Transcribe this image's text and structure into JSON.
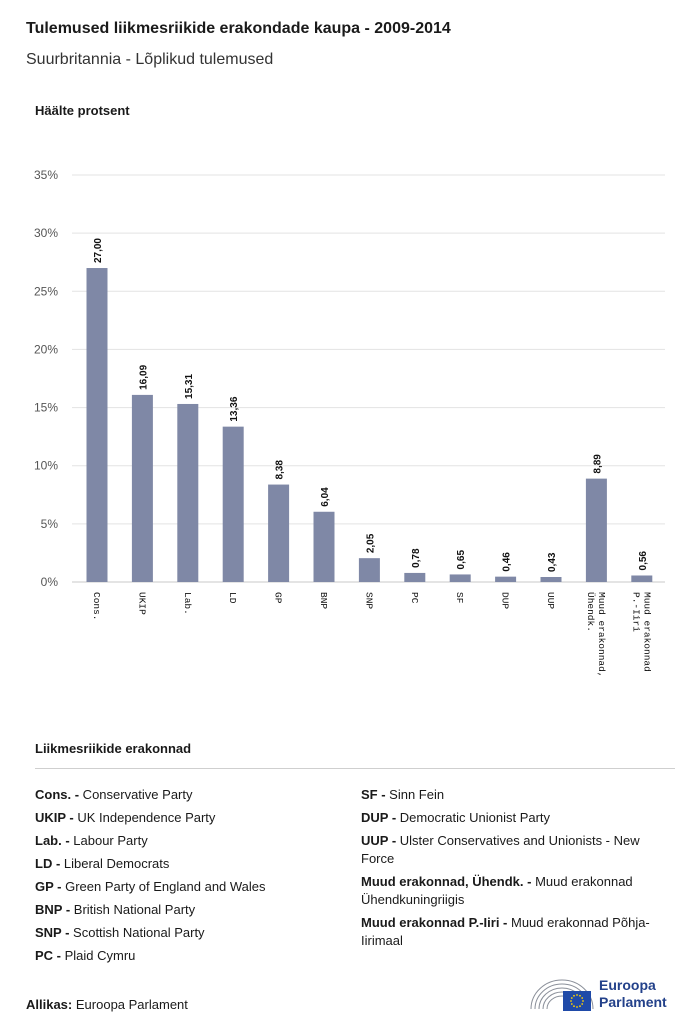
{
  "header": {
    "title": "Tulemused liikmesriikide erakondade kaupa - 2009-2014",
    "subtitle": "Suurbritannia - Lõplikud tulemused"
  },
  "chart_data": {
    "type": "bar",
    "title": "Tulemused liikmesriikide erakondade kaupa - 2009-2014",
    "subtitle": "Suurbritannia - Lõplikud tulemused",
    "ylabel": "Häälte protsent",
    "xlabel": "",
    "ylim": [
      0,
      35
    ],
    "yticks": [
      0,
      5,
      10,
      15,
      20,
      25,
      30,
      35
    ],
    "ytick_labels": [
      "0%",
      "5%",
      "10%",
      "15%",
      "20%",
      "25%",
      "30%",
      "35%"
    ],
    "categories": [
      "Cons.",
      "UKIP",
      "Lab.",
      "LD",
      "GP",
      "BNP",
      "SNP",
      "PC",
      "SF",
      "DUP",
      "UUP",
      "Muud erakonnad, Ühendk.",
      "Muud erakonnad P.-Iiri"
    ],
    "values": [
      27.0,
      16.09,
      15.31,
      13.36,
      8.38,
      6.04,
      2.05,
      0.78,
      0.65,
      0.46,
      0.43,
      8.89,
      0.56
    ],
    "value_labels": [
      "27,00",
      "16,09",
      "15,31",
      "13,36",
      "8,38",
      "6,04",
      "2,05",
      "0,78",
      "0,65",
      "0,46",
      "0,43",
      "8,89",
      "0,56"
    ],
    "grid": true,
    "bar_color": "#7f88a6"
  },
  "legend": {
    "title": "Liikmesriikide erakonnad",
    "left": [
      {
        "abbr": "Cons. -",
        "name": "Conservative Party"
      },
      {
        "abbr": "UKIP -",
        "name": "UK Independence Party"
      },
      {
        "abbr": "Lab. -",
        "name": "Labour Party"
      },
      {
        "abbr": "LD -",
        "name": "Liberal Democrats"
      },
      {
        "abbr": "GP -",
        "name": "Green Party of England and Wales"
      },
      {
        "abbr": "BNP -",
        "name": "British National Party"
      },
      {
        "abbr": "SNP -",
        "name": "Scottish National Party"
      },
      {
        "abbr": "PC -",
        "name": "Plaid Cymru"
      }
    ],
    "right": [
      {
        "abbr": "SF -",
        "name": "Sinn Fein"
      },
      {
        "abbr": "DUP -",
        "name": "Democratic Unionist Party"
      },
      {
        "abbr": "UUP -",
        "name": "Ulster Conservatives and Unionists - New Force"
      },
      {
        "abbr": "Muud erakonnad, Ühendk. -",
        "name": "Muud erakonnad Ühendkuningriigis"
      },
      {
        "abbr": "Muud erakonnad P.-Iiri -",
        "name": "Muud erakonnad Põhja-Iirimaal"
      }
    ]
  },
  "footer": {
    "source_label": "Allikas:",
    "source_value": "Euroopa Parlament",
    "logo_line1": "Euroopa",
    "logo_line2": "Parlament"
  },
  "colors": {
    "bar": "#7f88a6",
    "grid": "#e3e3e3",
    "logo_blue": "#23418a",
    "flag_blue": "#1f4aa8",
    "flag_star": "#ffd200"
  }
}
